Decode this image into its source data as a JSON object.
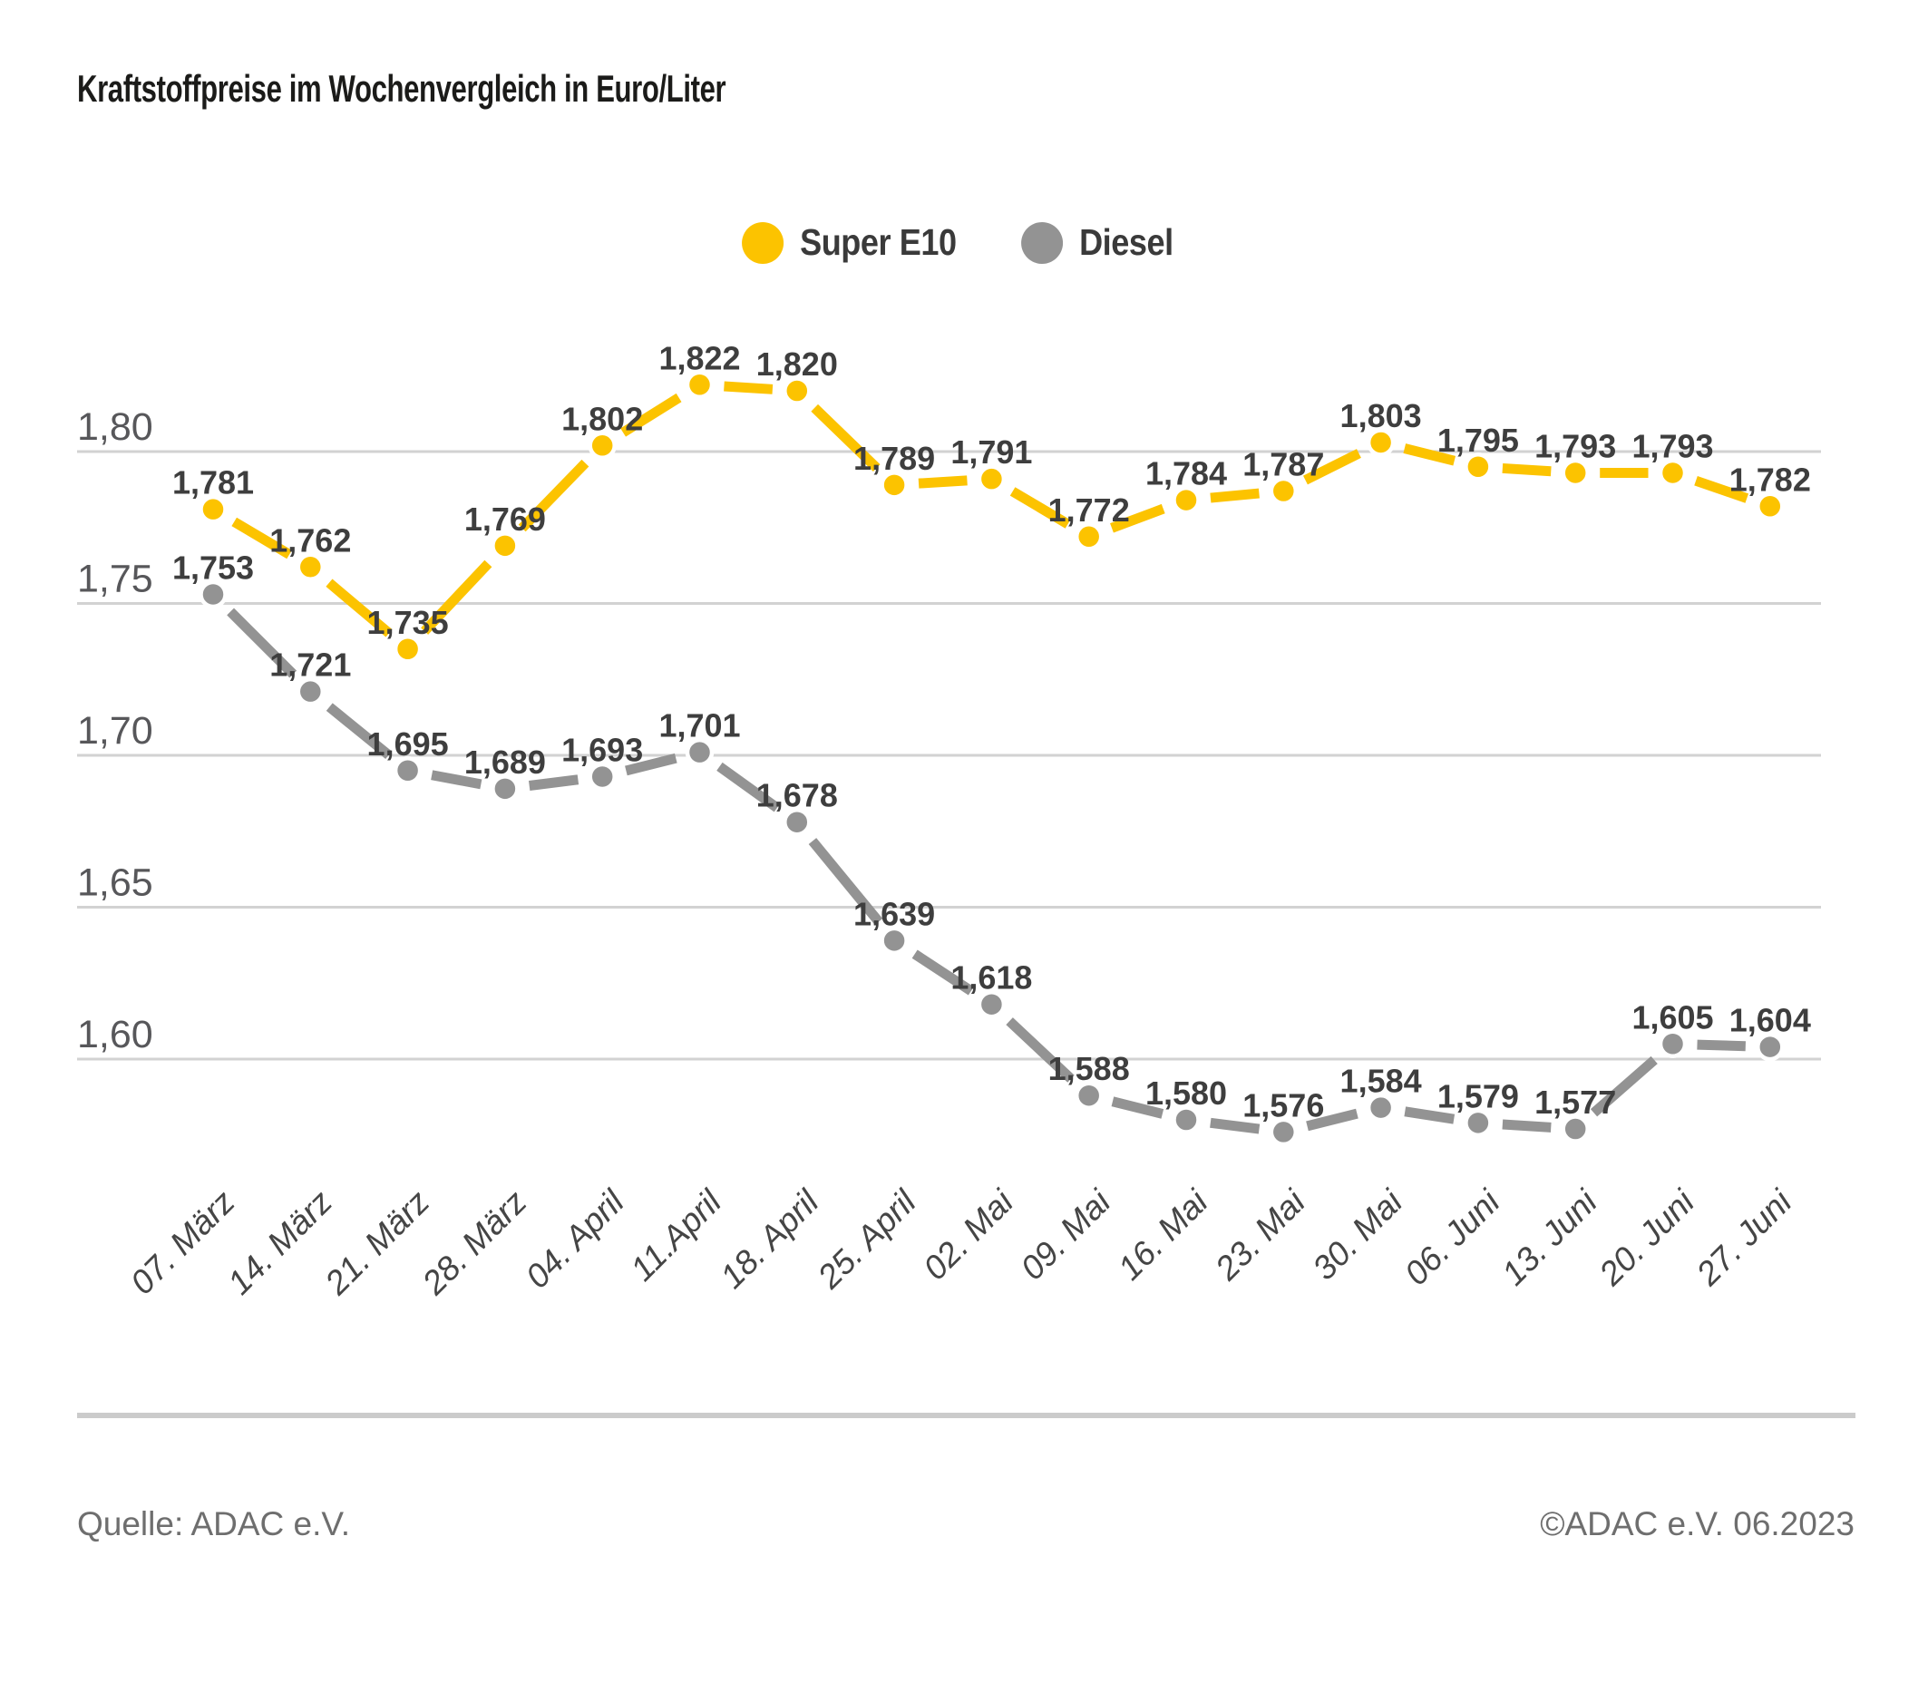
{
  "title": "Kraftstoffpreise im Wochenvergleich in Euro/Liter",
  "legend": [
    {
      "label": "Super E10",
      "color": "#FCC300"
    },
    {
      "label": "Diesel",
      "color": "#939393"
    }
  ],
  "footer": {
    "source": "Quelle: ADAC e.V.",
    "copyright": "©ADAC e.V. 06.2023"
  },
  "chart_data": {
    "type": "line",
    "title": "Kraftstoffpreise im Wochenvergleich in Euro/Liter",
    "xlabel": "",
    "ylabel": "Euro/Liter",
    "categories": [
      "07. März",
      "14. März",
      "21. März",
      "28. März",
      "04. April",
      "11.April",
      "18. April",
      "25. April",
      "02. Mai",
      "09. Mai",
      "16. Mai",
      "23. Mai",
      "30. Mai",
      "06. Juni",
      "13. Juni",
      "20. Juni",
      "27. Juni"
    ],
    "series": [
      {
        "name": "Super E10",
        "color": "#FCC300",
        "values": [
          1.781,
          1.762,
          1.735,
          1.769,
          1.802,
          1.822,
          1.82,
          1.789,
          1.791,
          1.772,
          1.784,
          1.787,
          1.803,
          1.795,
          1.793,
          1.793,
          1.782
        ]
      },
      {
        "name": "Diesel",
        "color": "#939393",
        "values": [
          1.753,
          1.721,
          1.695,
          1.689,
          1.693,
          1.701,
          1.678,
          1.639,
          1.618,
          1.588,
          1.58,
          1.576,
          1.584,
          1.579,
          1.577,
          1.605,
          1.604
        ]
      }
    ],
    "y_ticks": [
      1.8,
      1.75,
      1.7,
      1.65,
      1.6
    ],
    "y_tick_labels": [
      "1,80",
      "1,75",
      "1,70",
      "1,65",
      "1,60"
    ],
    "ylim": [
      1.555,
      1.845
    ],
    "grid": true,
    "legend_position": "top",
    "decimal_separator": ","
  }
}
